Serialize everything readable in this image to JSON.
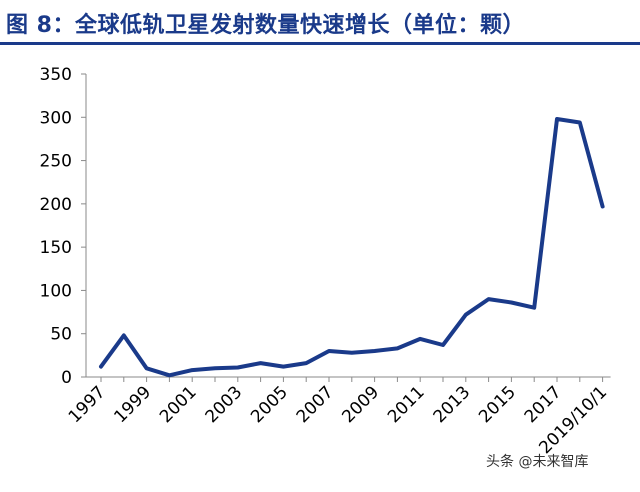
{
  "header": {
    "title": "图 8：全球低轨卫星发射数量快速增长（单位：颗）",
    "accent": "#1a3a8a"
  },
  "watermark": "头条 @未来智库",
  "chart_data": {
    "type": "line",
    "title": "",
    "xlabel": "",
    "ylabel": "",
    "ylim": [
      0,
      350
    ],
    "yticks": [
      0,
      50,
      100,
      150,
      200,
      250,
      300,
      350
    ],
    "grid": false,
    "legend": "none",
    "line_color": "#1a3a8a",
    "categories": [
      "1997",
      "1998",
      "1999",
      "2000",
      "2001",
      "2002",
      "2003",
      "2004",
      "2005",
      "2006",
      "2007",
      "2008",
      "2009",
      "2010",
      "2011",
      "2012",
      "2013",
      "2014",
      "2015",
      "2016",
      "2017",
      "2018",
      "2019/10/1"
    ],
    "xtick_labels": [
      "1997",
      "1999",
      "2001",
      "2003",
      "2005",
      "2007",
      "2009",
      "2011",
      "2013",
      "2015",
      "2017",
      "2019/10/1"
    ],
    "values": [
      12,
      48,
      10,
      2,
      8,
      10,
      11,
      16,
      12,
      16,
      30,
      28,
      30,
      33,
      44,
      37,
      72,
      90,
      86,
      80,
      298,
      294,
      197
    ]
  }
}
